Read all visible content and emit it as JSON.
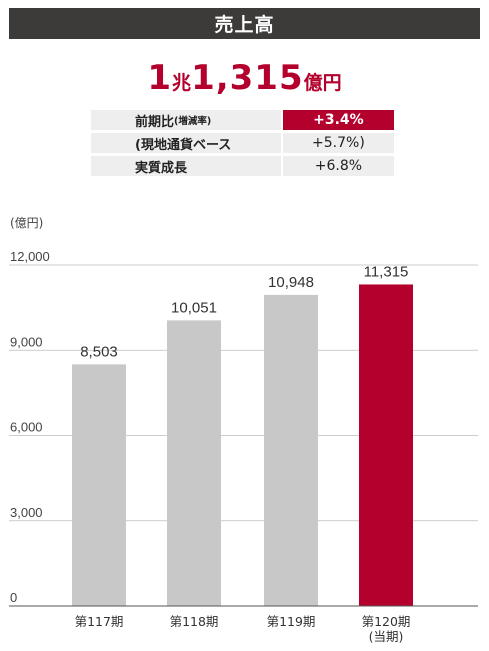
{
  "header": {
    "title": "売上高"
  },
  "headline": {
    "num1": "1",
    "unit1": "兆",
    "num2": "1,315",
    "unit2": "億円"
  },
  "stats": [
    {
      "label": "前期比",
      "sub": "(増減率)",
      "value": "+3.4%",
      "accent": true
    },
    {
      "label": "(現地通貨ベース",
      "sub": "",
      "value": "+5.7%)",
      "accent": false
    },
    {
      "label": "実質成長",
      "sub": "",
      "value": "+6.8%",
      "accent": false
    }
  ],
  "colors": {
    "bar": "#c8c8c8",
    "highlight": "#b3002d",
    "header": "#3d3a3a"
  },
  "chart_data": {
    "type": "bar",
    "unit_label": "(億円)",
    "categories": [
      "第117期",
      "第118期",
      "第119期",
      "第120期"
    ],
    "category_sublabels": [
      "",
      "",
      "",
      "(当期)"
    ],
    "values": [
      8503,
      10051,
      10948,
      11315
    ],
    "value_labels": [
      "8,503",
      "10,051",
      "10,948",
      "11,315"
    ],
    "highlight_index": 3,
    "yticks": [
      0,
      3000,
      6000,
      9000,
      12000
    ],
    "ytick_labels": [
      "0",
      "3,000",
      "6,000",
      "9,000",
      "12,000"
    ],
    "ylim": [
      0,
      12000
    ],
    "grid": true
  }
}
